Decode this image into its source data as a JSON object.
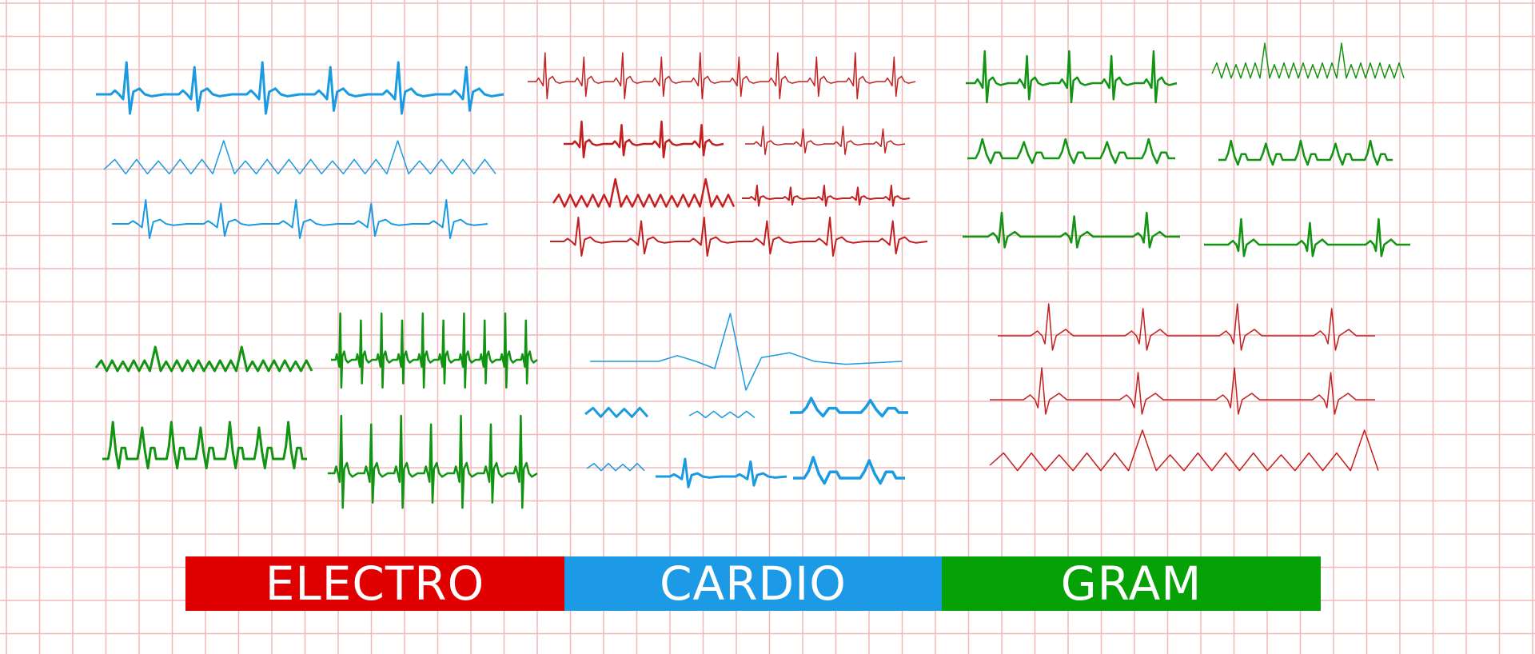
{
  "colors": {
    "grid": "#f2b8b8",
    "blue": "#1a9ae0",
    "red": "#c41f1f",
    "green": "#119411",
    "banner_red": "#e00000",
    "banner_blue": "#1c9ae6",
    "banner_green": "#06a106"
  },
  "banner": {
    "electro": "ELECTRO",
    "cardio": "CARDIO",
    "gram": "GRAM"
  },
  "traces": [
    "ecg-trace-blue-1",
    "ecg-trace-blue-2",
    "ecg-trace-blue-3",
    "ecg-trace-red-1",
    "ecg-trace-red-2a",
    "ecg-trace-red-2b",
    "ecg-trace-red-3a",
    "ecg-trace-red-3b",
    "ecg-trace-red-4",
    "ecg-trace-green-1a",
    "ecg-trace-green-1b",
    "ecg-trace-green-2a",
    "ecg-trace-green-2b",
    "ecg-trace-green-3a",
    "ecg-trace-green-3b"
  ]
}
